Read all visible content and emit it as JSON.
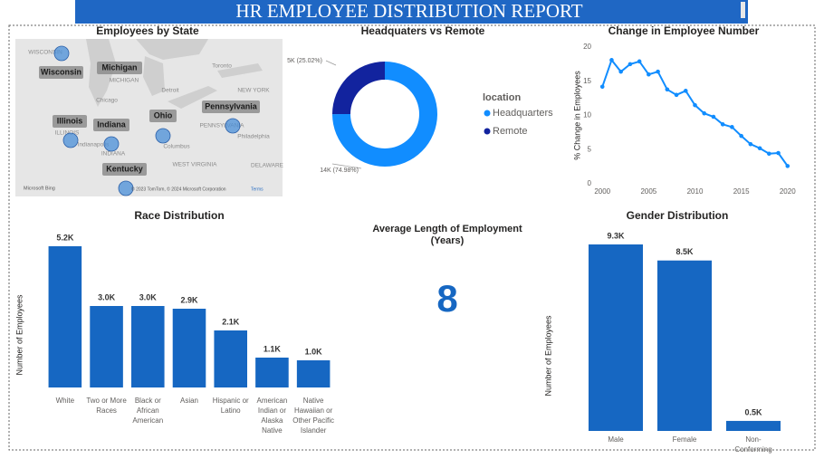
{
  "header": {
    "title": "HR EMPLOYEE DISTRIBUTION REPORT"
  },
  "chart_data": [
    {
      "type": "map",
      "title": "Employees by State",
      "categories": [
        "Wisconsin",
        "Michigan",
        "Illinois",
        "Indiana",
        "Ohio",
        "Pennsylvania",
        "Kentucky"
      ],
      "place_labels": [
        "WISCONSIN",
        "MICHIGAN",
        "Toronto",
        "Detroit",
        "NEW YORK",
        "Chicago",
        "ILLINOIS",
        "Indianapolis",
        "INDIANA",
        "Columbus",
        "WEST VIRGINIA",
        "PENNSYLVANIA",
        "Philadelphia",
        "DELAWARE"
      ],
      "attribution": [
        "Microsoft Bing",
        "© 2023 TomTom, © 2024 Microsoft Corporation",
        "Terms"
      ],
      "color": "#4a8fd8"
    },
    {
      "type": "pie",
      "title": "Headquaters vs Remote",
      "donut": true,
      "legend_title": "location",
      "categories": [
        "Headquarters",
        "Remote"
      ],
      "values": [
        74.98,
        25.02
      ],
      "value_labels": [
        "14K (74.98%)",
        "5K (25.02%)"
      ],
      "colors": [
        "#118dff",
        "#12239e"
      ]
    },
    {
      "type": "line",
      "title": "Change in Employee Number",
      "ylabel": "% Change in Employees",
      "x": [
        2000,
        2001,
        2002,
        2003,
        2004,
        2005,
        2006,
        2007,
        2008,
        2009,
        2010,
        2011,
        2012,
        2013,
        2014,
        2015,
        2016,
        2017,
        2018,
        2019,
        2020
      ],
      "values": [
        14.2,
        18.1,
        16.4,
        17.5,
        17.9,
        16.0,
        16.4,
        13.8,
        13.0,
        13.6,
        11.5,
        10.3,
        9.8,
        8.7,
        8.3,
        7.0,
        5.8,
        5.2,
        4.4,
        4.5,
        2.6
      ],
      "color": "#118dff",
      "xlim": [
        1999,
        2021
      ],
      "xticks": [
        2000,
        2005,
        2010,
        2015,
        2020
      ],
      "ylim": [
        0,
        20
      ],
      "yticks": [
        0,
        5,
        10,
        15,
        20
      ]
    },
    {
      "type": "bar",
      "title": "Race Distribution",
      "ylabel": "Number of Employees",
      "categories": [
        "White",
        "Two or More Races",
        "Black or African American",
        "Asian",
        "Hispanic or Latino",
        "American Indian or Alaska Native",
        "Native Hawaiian or Other Pacific Islander"
      ],
      "values": [
        5200,
        3000,
        3000,
        2900,
        2100,
        1100,
        1000
      ],
      "value_labels": [
        "5.2K",
        "3.0K",
        "3.0K",
        "2.9K",
        "2.1K",
        "1.1K",
        "1.0K"
      ],
      "color": "#1667c2"
    },
    {
      "type": "card",
      "title": "Average Length of Employment (Years)",
      "value": 8,
      "color": "#1667c2"
    },
    {
      "type": "bar",
      "title": "Gender Distribution",
      "ylabel": "Number of Employees",
      "categories": [
        "Male",
        "Female",
        "Non-Conforming"
      ],
      "values": [
        9300,
        8500,
        500
      ],
      "value_labels": [
        "9.3K",
        "8.5K",
        "0.5K"
      ],
      "color": "#1667c2"
    }
  ]
}
